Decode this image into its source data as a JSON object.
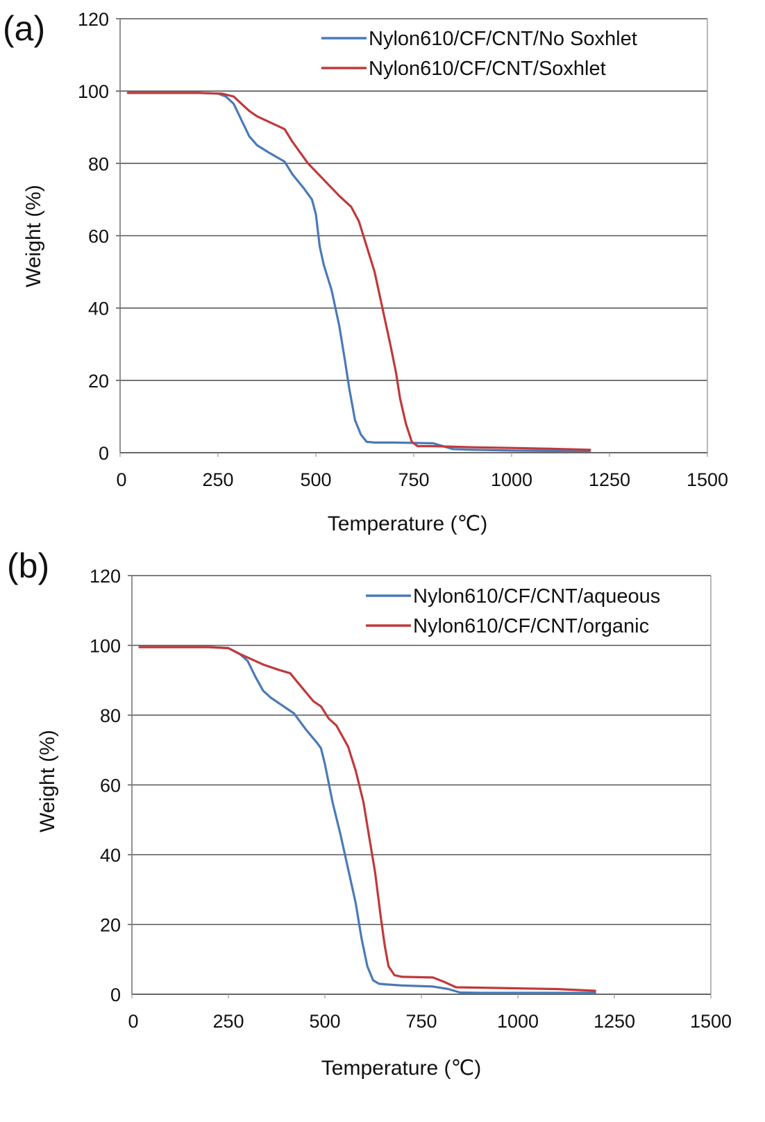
{
  "chart_data": [
    {
      "type": "line",
      "panel_label": "(a)",
      "title": "",
      "xlabel": "Temperature (℃)",
      "ylabel": "Weight (%)",
      "xlim": [
        0,
        1500
      ],
      "ylim": [
        0,
        120
      ],
      "x_ticks": [
        "0",
        "250",
        "500",
        "750",
        "1000",
        "1250",
        "1500"
      ],
      "y_ticks": [
        "0",
        "20",
        "40",
        "60",
        "80",
        "100",
        "120"
      ],
      "x_tick_values": [
        0,
        250,
        500,
        750,
        1000,
        1250,
        1500
      ],
      "y_tick_values": [
        0,
        20,
        40,
        60,
        80,
        100,
        120
      ],
      "grid": "horizontal",
      "legend_position": "top-right",
      "series": [
        {
          "name": "Nylon610/CF/CNT/No Soxhlet",
          "color": "#4a7ab8",
          "x": [
            20,
            100,
            200,
            250,
            270,
            290,
            310,
            330,
            350,
            380,
            420,
            440,
            470,
            490,
            500,
            510,
            520,
            540,
            560,
            575,
            585,
            600,
            615,
            630,
            650,
            700,
            800,
            850,
            900,
            1000,
            1100,
            1200
          ],
          "y": [
            99.5,
            99.5,
            99.5,
            99.3,
            98.5,
            96.5,
            92,
            87.5,
            85,
            83,
            80.5,
            77,
            73,
            70,
            66,
            57,
            52,
            45,
            35,
            25,
            18,
            9,
            5,
            3,
            2.8,
            2.8,
            2.6,
            1,
            0.8,
            0.6,
            0.5,
            0.5
          ]
        },
        {
          "name": "Nylon610/CF/CNT/Soxhlet",
          "color": "#c0393b",
          "x": [
            20,
            100,
            200,
            260,
            290,
            310,
            330,
            350,
            380,
            420,
            440,
            460,
            480,
            520,
            560,
            590,
            610,
            630,
            650,
            670,
            690,
            705,
            715,
            730,
            745,
            760,
            800,
            900,
            1000,
            1100,
            1200
          ],
          "y": [
            99.5,
            99.5,
            99.5,
            99.3,
            98.5,
            96.5,
            94.5,
            93,
            91.5,
            89.5,
            86,
            83,
            80,
            75.5,
            71,
            68,
            64,
            57,
            50,
            40,
            30,
            22,
            15,
            8,
            3,
            1.8,
            1.8,
            1.5,
            1.3,
            1.1,
            0.8
          ]
        }
      ]
    },
    {
      "type": "line",
      "panel_label": "(b)",
      "title": "",
      "xlabel": "Temperature (℃)",
      "ylabel": "Weight (%)",
      "xlim": [
        0,
        1500
      ],
      "ylim": [
        0,
        120
      ],
      "x_ticks": [
        "0",
        "250",
        "500",
        "750",
        "1000",
        "1250",
        "1500"
      ],
      "y_ticks": [
        "0",
        "20",
        "40",
        "60",
        "80",
        "100",
        "120"
      ],
      "x_tick_values": [
        0,
        250,
        500,
        750,
        1000,
        1250,
        1500
      ],
      "y_tick_values": [
        0,
        20,
        40,
        60,
        80,
        100,
        120
      ],
      "grid": "horizontal",
      "legend_position": "top-right",
      "series": [
        {
          "name": "Nylon610/CF/CNT/aqueous",
          "color": "#4a7ab8",
          "x": [
            20,
            100,
            200,
            250,
            280,
            300,
            320,
            340,
            360,
            400,
            420,
            450,
            480,
            490,
            500,
            520,
            540,
            560,
            580,
            595,
            610,
            625,
            640,
            660,
            700,
            780,
            820,
            850,
            900,
            1000,
            1100,
            1200
          ],
          "y": [
            99.5,
            99.5,
            99.5,
            99.2,
            97.5,
            95.5,
            91,
            87,
            85,
            82,
            80.5,
            76,
            72,
            70.5,
            66,
            55,
            46,
            36,
            26,
            16,
            8,
            4,
            3,
            2.8,
            2.5,
            2.2,
            1.5,
            0.5,
            0.4,
            0.4,
            0.4,
            0.4
          ]
        },
        {
          "name": "Nylon610/CF/CNT/organic",
          "color": "#c0393b",
          "x": [
            20,
            100,
            200,
            250,
            280,
            310,
            340,
            380,
            410,
            440,
            470,
            490,
            510,
            530,
            560,
            580,
            600,
            615,
            630,
            645,
            655,
            665,
            680,
            700,
            780,
            810,
            840,
            900,
            1000,
            1100,
            1200
          ],
          "y": [
            99.5,
            99.5,
            99.5,
            99.2,
            97.5,
            96,
            94.5,
            93,
            92,
            88,
            84,
            82.5,
            79,
            77,
            71,
            64,
            55,
            45,
            35,
            22,
            14,
            8,
            5.5,
            5,
            4.8,
            3.5,
            2,
            1.9,
            1.7,
            1.5,
            1.0
          ]
        }
      ]
    }
  ]
}
